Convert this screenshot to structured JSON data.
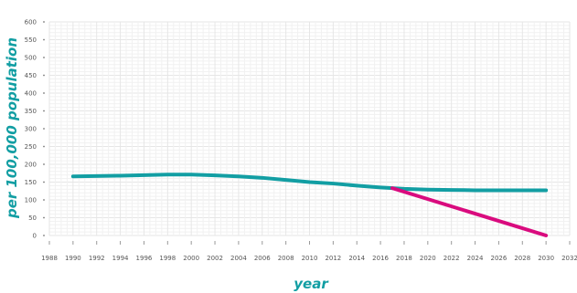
{
  "chart_data": {
    "type": "line",
    "title": "",
    "xlabel": "year",
    "ylabel": "per 100,000 population",
    "xlim": [
      1988,
      2032
    ],
    "ylim": [
      0,
      600
    ],
    "grid": true,
    "legend": "none",
    "x_ticks": [
      "1988",
      "1990",
      "1992",
      "1994",
      "1996",
      "1998",
      "2000",
      "2002",
      "2004",
      "2006",
      "2008",
      "2010",
      "2012",
      "2014",
      "2016",
      "2018",
      "2020",
      "2022",
      "2024",
      "2026",
      "2028",
      "2030",
      "2032"
    ],
    "y_ticks": [
      "0",
      "50",
      "100",
      "150",
      "200",
      "250",
      "300",
      "350",
      "400",
      "450",
      "500",
      "550",
      "600"
    ],
    "series": [
      {
        "color": "#129ea3",
        "x": [
          1990,
          1994,
          1998,
          2000,
          2002,
          2004,
          2006,
          2008,
          2010,
          2012,
          2014,
          2016,
          2017,
          2018,
          2020,
          2022,
          2024,
          2026,
          2028,
          2030
        ],
        "y": [
          166,
          168,
          171,
          171,
          169,
          166,
          162,
          156,
          150,
          146,
          140,
          135,
          133,
          131,
          129,
          128,
          127,
          127,
          127,
          127
        ]
      },
      {
        "color": "#d90b7e",
        "x": [
          2017,
          2030
        ],
        "y": [
          133,
          0
        ]
      }
    ]
  }
}
